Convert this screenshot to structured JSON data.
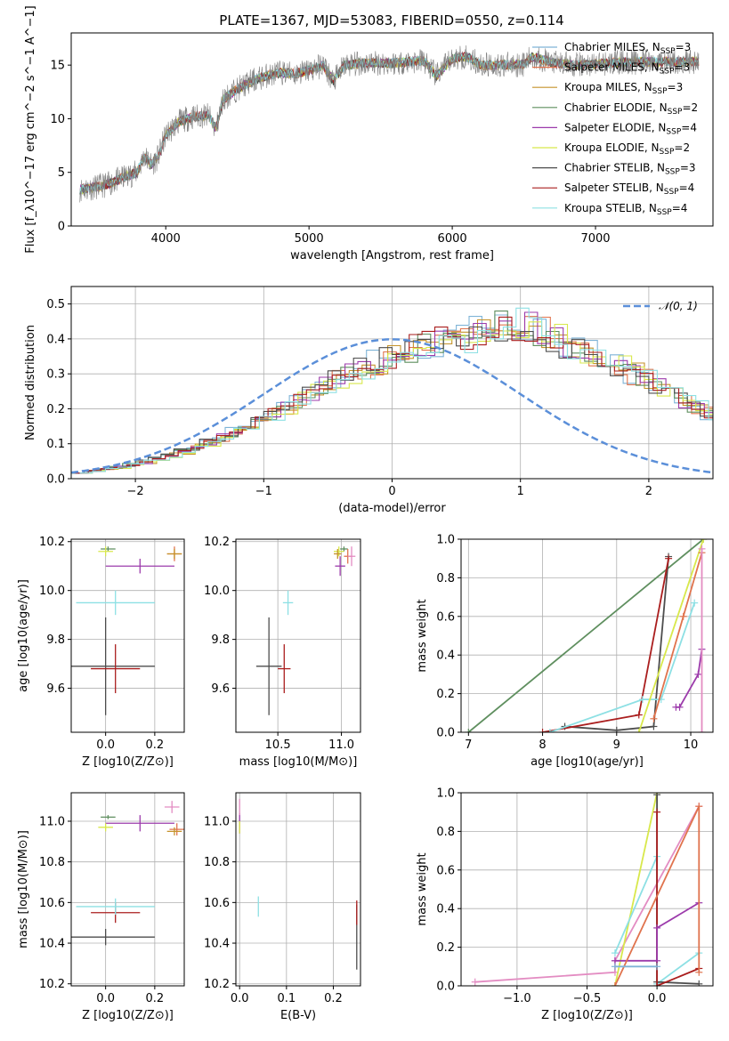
{
  "figure_title": "PLATE=1367, MJD=53083, FIBERID=0550, z=0.114",
  "chart_data": [
    {
      "id": "spectrum",
      "type": "line",
      "xlabel": "wavelength [Angstrom, rest frame]",
      "ylabel": "Flux [f_λ10^−17 erg cm^−2 s^−1 A^−1]",
      "xlim": [
        3340,
        7820
      ],
      "ylim": [
        0,
        18
      ],
      "xticks": [
        4000,
        5000,
        6000,
        7000
      ],
      "yticks": [
        0,
        5,
        10,
        15
      ],
      "grid": false,
      "legend_position": "top-right",
      "observed_color": "#808080",
      "observed_flux": [
        [
          3400,
          3.4
        ],
        [
          3500,
          3.6
        ],
        [
          3600,
          3.9
        ],
        [
          3700,
          4.5
        ],
        [
          3800,
          5.0
        ],
        [
          3850,
          6.5
        ],
        [
          3900,
          5.7
        ],
        [
          3950,
          6.5
        ],
        [
          4000,
          8.5
        ],
        [
          4100,
          9.8
        ],
        [
          4200,
          10.2
        ],
        [
          4300,
          10.3
        ],
        [
          4350,
          9.0
        ],
        [
          4400,
          11.8
        ],
        [
          4500,
          12.8
        ],
        [
          4600,
          13.5
        ],
        [
          4700,
          14.0
        ],
        [
          4800,
          14.3
        ],
        [
          4900,
          14.2
        ],
        [
          5000,
          14.5
        ],
        [
          5100,
          15.0
        ],
        [
          5170,
          13.5
        ],
        [
          5250,
          15.0
        ],
        [
          5400,
          15.2
        ],
        [
          5600,
          15.2
        ],
        [
          5800,
          15.4
        ],
        [
          5890,
          14.0
        ],
        [
          6000,
          15.6
        ],
        [
          6100,
          15.8
        ],
        [
          6200,
          15.0
        ],
        [
          6300,
          15.0
        ],
        [
          6500,
          15.1
        ],
        [
          6563,
          15.8
        ],
        [
          6700,
          15.2
        ],
        [
          6900,
          15.0
        ],
        [
          7100,
          15.2
        ],
        [
          7300,
          15.3
        ],
        [
          7500,
          15.3
        ],
        [
          7700,
          15.3
        ]
      ],
      "series": [
        {
          "name": "Chabrier MILES, N_SSP=3",
          "color": "#7fb4d7"
        },
        {
          "name": "Salpeter MILES, N_SSP=3",
          "color": "#e0734d"
        },
        {
          "name": "Kroupa MILES, N_SSP=3",
          "color": "#c5932b"
        },
        {
          "name": "Chabrier ELODIE, N_SSP=2",
          "color": "#5f8f5f"
        },
        {
          "name": "Salpeter ELODIE, N_SSP=4",
          "color": "#9c3bab"
        },
        {
          "name": "Kroupa ELODIE, N_SSP=2",
          "color": "#d8e84b"
        },
        {
          "name": "Chabrier STELIB, N_SSP=3",
          "color": "#4d4d4d"
        },
        {
          "name": "Salpeter STELIB, N_SSP=4",
          "color": "#aa1e1e"
        },
        {
          "name": "Kroupa STELIB, N_SSP=4",
          "color": "#8de0e4"
        }
      ]
    },
    {
      "id": "residual_histogram",
      "type": "histogram",
      "xlabel": "(data-model)/error",
      "ylabel": "Normed distribution",
      "xlim": [
        -2.5,
        2.5
      ],
      "ylim": [
        0,
        0.55
      ],
      "xticks": [
        -2,
        -1,
        0,
        1,
        2
      ],
      "yticks": [
        0.0,
        0.1,
        0.2,
        0.3,
        0.4,
        0.5
      ],
      "grid": true,
      "legend_position": "top-right",
      "reference_curve": {
        "name": "𝒩(0, 1)",
        "color": "#5b8fd9",
        "mean": 0,
        "sigma": 1
      },
      "bin_width": 0.1,
      "bin_start": -2.5,
      "base_density": [
        0.018,
        0.022,
        0.027,
        0.033,
        0.04,
        0.048,
        0.057,
        0.067,
        0.078,
        0.09,
        0.104,
        0.118,
        0.134,
        0.15,
        0.168,
        0.186,
        0.205,
        0.224,
        0.243,
        0.262,
        0.281,
        0.299,
        0.316,
        0.333,
        0.348,
        0.361,
        0.373,
        0.383,
        0.391,
        0.397,
        0.4,
        0.42,
        0.43,
        0.44,
        0.44,
        0.43,
        0.42,
        0.4,
        0.385,
        0.37,
        0.36,
        0.34,
        0.32,
        0.3,
        0.285,
        0.262,
        0.243,
        0.224,
        0.205,
        0.186,
        0.168,
        0.15,
        0.134,
        0.118,
        0.104,
        0.09,
        0.078,
        0.067,
        0.057,
        0.048,
        0.04,
        0.033,
        0.027,
        0.022,
        0.018,
        0.014,
        0.012,
        0.01,
        0.008,
        0.006
      ],
      "series_names": [
        "Chabrier MILES",
        "Salpeter MILES",
        "Kroupa MILES",
        "Chabrier ELODIE",
        "Salpeter ELODIE",
        "Kroupa ELODIE",
        "Chabrier STELIB",
        "Salpeter STELIB",
        "Kroupa STELIB"
      ]
    },
    {
      "id": "age_vs_Z",
      "type": "errorbar",
      "xlabel": "Z [log10(Z/Z⊙)]",
      "ylabel": "age [log10(age/yr)]",
      "xlim": [
        -0.14,
        0.32
      ],
      "ylim": [
        9.42,
        10.21
      ],
      "xticks": [
        0.0,
        0.2
      ],
      "yticks": [
        9.6,
        9.8,
        10.0,
        10.2
      ],
      "grid": true,
      "points": [
        {
          "color": "#4d4d4d",
          "x": 0.0,
          "y": 9.69,
          "xerr": 0.2,
          "yerr": 0.2
        },
        {
          "color": "#aa1e1e",
          "x": 0.04,
          "y": 9.68,
          "xerr": 0.1,
          "yerr": 0.1
        },
        {
          "color": "#8de0e4",
          "x": 0.04,
          "y": 9.95,
          "xerr": 0.16,
          "yerr": 0.05
        },
        {
          "color": "#9c3bab",
          "x": 0.14,
          "y": 10.1,
          "xerr": 0.14,
          "yerr": 0.03
        },
        {
          "color": "#5f8f5f",
          "x": 0.01,
          "y": 10.17,
          "xerr": 0.03,
          "yerr": 0.01
        },
        {
          "color": "#d8e84b",
          "x": 0.0,
          "y": 10.16,
          "xerr": 0.03,
          "yerr": 0.02
        },
        {
          "color": "#e0734d",
          "x": 0.28,
          "y": 10.15,
          "xerr": 0.03,
          "yerr": 0.03
        },
        {
          "color": "#c5932b",
          "x": 0.28,
          "y": 10.15,
          "xerr": 0.03,
          "yerr": 0.02
        }
      ]
    },
    {
      "id": "age_vs_mass",
      "type": "errorbar",
      "xlabel": "mass [log10(M/M⊙)]",
      "ylabel": "",
      "xlim": [
        10.17,
        11.15
      ],
      "ylim": [
        9.42,
        10.21
      ],
      "xticks": [
        10.5,
        11.0
      ],
      "yticks": [
        9.6,
        9.8,
        10.0,
        10.2
      ],
      "grid": true,
      "points": [
        {
          "color": "#4d4d4d",
          "x": 10.43,
          "y": 9.69,
          "xerr": 0.1,
          "yerr": 0.2
        },
        {
          "color": "#aa1e1e",
          "x": 10.55,
          "y": 9.68,
          "xerr": 0.05,
          "yerr": 0.1
        },
        {
          "color": "#8de0e4",
          "x": 10.58,
          "y": 9.95,
          "xerr": 0.04,
          "yerr": 0.05
        },
        {
          "color": "#9c3bab",
          "x": 10.99,
          "y": 10.1,
          "xerr": 0.04,
          "yerr": 0.04
        },
        {
          "color": "#5f8f5f",
          "x": 11.02,
          "y": 10.17,
          "xerr": 0.03,
          "yerr": 0.01
        },
        {
          "color": "#d8e84b",
          "x": 10.98,
          "y": 10.16,
          "xerr": 0.04,
          "yerr": 0.02
        },
        {
          "color": "#e0734d",
          "x": 11.05,
          "y": 10.14,
          "xerr": 0.03,
          "yerr": 0.03
        },
        {
          "color": "#c5932b",
          "x": 10.97,
          "y": 10.15,
          "xerr": 0.03,
          "yerr": 0.02
        },
        {
          "color": "#e38cc2",
          "x": 11.08,
          "y": 10.14,
          "xerr": 0.03,
          "yerr": 0.04
        }
      ]
    },
    {
      "id": "mass_weight_vs_age",
      "type": "line",
      "xlabel": "age [log10(age/yr)]",
      "ylabel": "mass weight",
      "xlim": [
        6.9,
        10.3
      ],
      "ylim": [
        0,
        1
      ],
      "xticks": [
        7,
        8,
        9,
        10
      ],
      "yticks": [
        0.0,
        0.2,
        0.4,
        0.6,
        0.8,
        1.0
      ],
      "grid": true,
      "series": [
        {
          "color": "#5f8f5f",
          "points": [
            [
              7.0,
              0.0
            ],
            [
              10.17,
              1.0
            ]
          ]
        },
        {
          "color": "#4d4d4d",
          "points": [
            [
              8.3,
              0.03
            ],
            [
              9.0,
              0.01
            ],
            [
              9.5,
              0.03
            ],
            [
              9.7,
              0.91
            ]
          ]
        },
        {
          "color": "#aa1e1e",
          "points": [
            [
              8.0,
              0.0
            ],
            [
              9.3,
              0.09
            ],
            [
              9.7,
              0.9
            ]
          ]
        },
        {
          "color": "#8de0e4",
          "points": [
            [
              8.1,
              0.0
            ],
            [
              9.35,
              0.17
            ],
            [
              9.6,
              0.17
            ],
            [
              10.05,
              0.67
            ]
          ]
        },
        {
          "color": "#d8e84b",
          "points": [
            [
              9.3,
              0.0
            ],
            [
              10.17,
              1.0
            ]
          ]
        },
        {
          "color": "#9c3bab",
          "points": [
            [
              9.8,
              0.13
            ],
            [
              9.85,
              0.13
            ],
            [
              10.1,
              0.3
            ],
            [
              10.15,
              0.43
            ]
          ]
        },
        {
          "color": "#e0734d",
          "points": [
            [
              9.5,
              0.07
            ],
            [
              9.9,
              0.6
            ],
            [
              10.15,
              0.93
            ]
          ]
        },
        {
          "color": "#e38cc2",
          "points": [
            [
              10.15,
              0.0
            ],
            [
              10.15,
              0.95
            ]
          ]
        }
      ]
    },
    {
      "id": "mass_vs_Z",
      "type": "errorbar",
      "xlabel": "Z [log10(Z/Z⊙)]",
      "ylabel": "mass [log10(M/M⊙)]",
      "xlim": [
        -0.14,
        0.32
      ],
      "ylim": [
        10.19,
        11.14
      ],
      "xticks": [
        0.0,
        0.2
      ],
      "yticks": [
        10.2,
        10.4,
        10.6,
        10.8,
        11.0
      ],
      "grid": true,
      "points": [
        {
          "color": "#4d4d4d",
          "x": 0.0,
          "y": 10.43,
          "xerr": 0.2,
          "yerr": 0.04
        },
        {
          "color": "#aa1e1e",
          "x": 0.04,
          "y": 10.55,
          "xerr": 0.1,
          "yerr": 0.05
        },
        {
          "color": "#8de0e4",
          "x": 0.04,
          "y": 10.58,
          "xerr": 0.16,
          "yerr": 0.04
        },
        {
          "color": "#9c3bab",
          "x": 0.14,
          "y": 10.99,
          "xerr": 0.14,
          "yerr": 0.04
        },
        {
          "color": "#5f8f5f",
          "x": 0.01,
          "y": 11.02,
          "xerr": 0.03,
          "yerr": 0.01
        },
        {
          "color": "#d8e84b",
          "x": 0.0,
          "y": 10.97,
          "xerr": 0.03,
          "yerr": 0.02
        },
        {
          "color": "#e0734d",
          "x": 0.29,
          "y": 10.96,
          "xerr": 0.03,
          "yerr": 0.03
        },
        {
          "color": "#c5932b",
          "x": 0.28,
          "y": 10.95,
          "xerr": 0.03,
          "yerr": 0.02
        },
        {
          "color": "#e38cc2",
          "x": 0.27,
          "y": 11.07,
          "xerr": 0.03,
          "yerr": 0.03
        }
      ]
    },
    {
      "id": "mass_vs_ebv",
      "type": "errorbar",
      "xlabel": "E(B-V)",
      "ylabel": "",
      "xlim": [
        -0.008,
        0.258
      ],
      "ylim": [
        10.19,
        11.14
      ],
      "xticks": [
        0.0,
        0.1,
        0.2
      ],
      "yticks": [
        10.2,
        10.4,
        10.6,
        10.8,
        11.0
      ],
      "grid": true,
      "points": [
        {
          "color": "#4d4d4d",
          "x": 0.25,
          "y": 10.43,
          "xerr": 0.0,
          "yerr": 0.16
        },
        {
          "color": "#aa1e1e",
          "x": 0.25,
          "y": 10.55,
          "xerr": 0.0,
          "yerr": 0.06
        },
        {
          "color": "#8de0e4",
          "x": 0.04,
          "y": 10.58,
          "xerr": 0.0,
          "yerr": 0.05
        },
        {
          "color": "#9c3bab",
          "x": 0.0,
          "y": 10.99,
          "xerr": 0.0,
          "yerr": 0.05
        },
        {
          "color": "#d8e84b",
          "x": 0.0,
          "y": 10.97,
          "xerr": 0.0,
          "yerr": 0.03
        },
        {
          "color": "#e38cc2",
          "x": 0.0,
          "y": 11.07,
          "xerr": 0.0,
          "yerr": 0.04
        }
      ]
    },
    {
      "id": "mass_weight_vs_Z",
      "type": "line",
      "xlabel": "Z [log10(Z/Z⊙)]",
      "ylabel": "mass weight",
      "xlim": [
        -1.4,
        0.4
      ],
      "ylim": [
        0,
        1
      ],
      "xticks": [
        -1.0,
        -0.5,
        0.0
      ],
      "yticks": [
        0.0,
        0.2,
        0.4,
        0.6,
        0.8,
        1.0
      ],
      "grid": true,
      "series": [
        {
          "color": "#e38cc2",
          "points": [
            [
              -1.3,
              0.02
            ],
            [
              -0.3,
              0.07
            ],
            [
              -0.3,
              0.13
            ],
            [
              0.3,
              0.93
            ]
          ]
        },
        {
          "color": "#d8e84b",
          "points": [
            [
              -0.3,
              0.0
            ],
            [
              0.0,
              1.0
            ]
          ]
        },
        {
          "color": "#8de0e4",
          "points": [
            [
              -0.3,
              0.17
            ],
            [
              0.0,
              0.67
            ],
            [
              0.0,
              0.01
            ],
            [
              0.3,
              0.17
            ]
          ]
        },
        {
          "color": "#4d4d4d",
          "points": [
            [
              0.0,
              0.99
            ],
            [
              0.0,
              0.02
            ],
            [
              0.3,
              0.01
            ]
          ]
        },
        {
          "color": "#aa1e1e",
          "points": [
            [
              0.0,
              0.9
            ],
            [
              0.0,
              0.0
            ],
            [
              0.3,
              0.09
            ]
          ]
        },
        {
          "color": "#9c3bab",
          "points": [
            [
              -0.3,
              0.13
            ],
            [
              0.0,
              0.13
            ],
            [
              0.0,
              0.3
            ],
            [
              0.3,
              0.43
            ]
          ]
        },
        {
          "color": "#e0734d",
          "points": [
            [
              -0.3,
              0.0
            ],
            [
              0.3,
              0.93
            ],
            [
              0.3,
              0.07
            ]
          ]
        },
        {
          "color": "#7fb4d7",
          "points": [
            [
              -0.3,
              0.1
            ],
            [
              0.0,
              0.1
            ]
          ]
        }
      ]
    }
  ]
}
